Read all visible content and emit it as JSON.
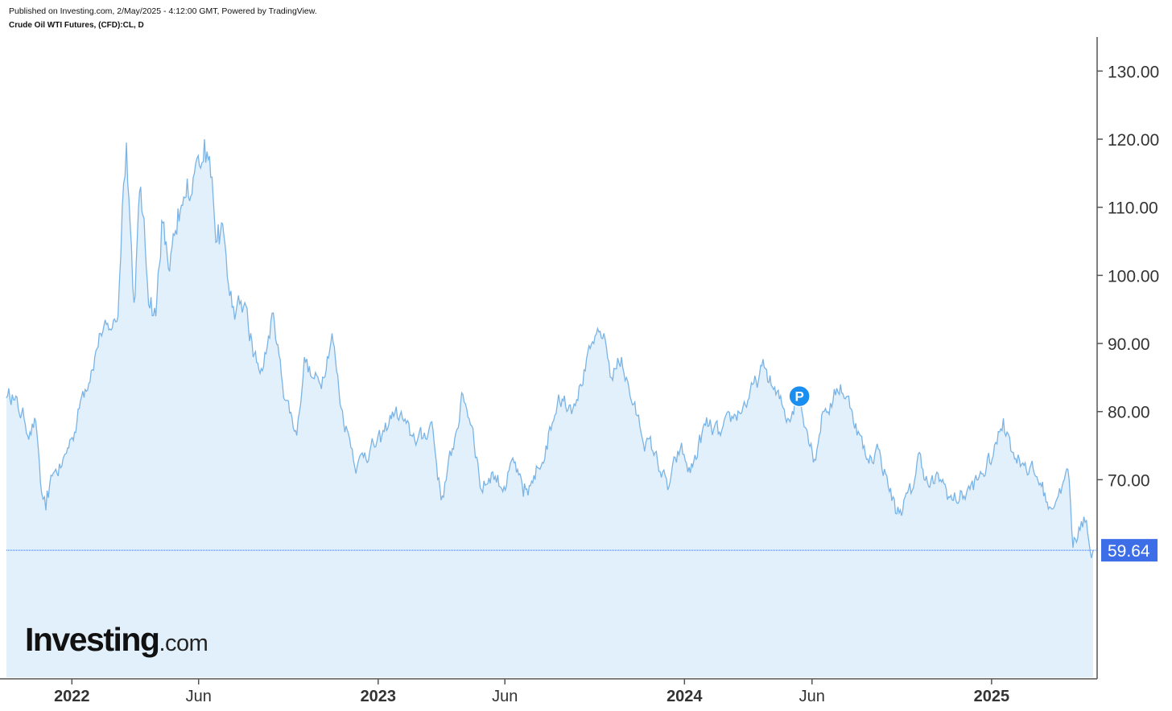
{
  "header": {
    "published": "Published on Investing.com, 2/May/2025 - 4:12:00 GMT, Powered by TradingView.",
    "symbol": "Crude Oil WTI Futures, (CFD):CL, D"
  },
  "logo": {
    "main": "Investing",
    "suffix": ".com"
  },
  "colors": {
    "line": "#7ab4e6",
    "fill": "#e1f0fa",
    "price_label": "#3d6ee8",
    "marker": "#1a8ff0",
    "axis": "#555555"
  },
  "chart_data": {
    "type": "area",
    "title": "Crude Oil WTI Futures, (CFD):CL, D",
    "xlabel": "",
    "ylabel": "",
    "ylim": [
      41,
      135
    ],
    "xlim": [
      "2021-10-15",
      "2025-05-02"
    ],
    "y_ticks": [
      "130.00",
      "120.00",
      "110.00",
      "100.00",
      "90.00",
      "80.00",
      "70.00"
    ],
    "x_ticks": [
      {
        "label": "2022",
        "date": "2022-01-01",
        "bold": true
      },
      {
        "label": "Jun",
        "date": "2022-06-01",
        "bold": false
      },
      {
        "label": "2023",
        "date": "2023-01-01",
        "bold": true
      },
      {
        "label": "Jun",
        "date": "2023-06-01",
        "bold": false
      },
      {
        "label": "2024",
        "date": "2024-01-01",
        "bold": true
      },
      {
        "label": "Jun",
        "date": "2024-06-01",
        "bold": false
      },
      {
        "label": "2025",
        "date": "2025-01-01",
        "bold": true
      }
    ],
    "last_price": 59.64,
    "last_price_label": "59.64",
    "marker": {
      "label": "P",
      "date": "2024-05-17",
      "value": 82.5
    },
    "grid": false,
    "series": [
      {
        "x": [
          "2021-10-15",
          "2021-10-22",
          "2021-10-29",
          "2021-11-05",
          "2021-11-12",
          "2021-11-19",
          "2021-11-26",
          "2021-12-01",
          "2021-12-10",
          "2021-12-20",
          "2021-12-31",
          "2022-01-07",
          "2022-01-14",
          "2022-01-24",
          "2022-02-04",
          "2022-02-14",
          "2022-02-25",
          "2022-03-02",
          "2022-03-07",
          "2022-03-16",
          "2022-03-24",
          "2022-04-01",
          "2022-04-11",
          "2022-04-18",
          "2022-04-26",
          "2022-05-06",
          "2022-05-17",
          "2022-05-27",
          "2022-06-08",
          "2022-06-14",
          "2022-06-23",
          "2022-07-01",
          "2022-07-08",
          "2022-07-14",
          "2022-07-26",
          "2022-08-05",
          "2022-08-16",
          "2022-08-29",
          "2022-09-09",
          "2022-09-26",
          "2022-10-05",
          "2022-10-14",
          "2022-10-24",
          "2022-11-07",
          "2022-11-18",
          "2022-11-28",
          "2022-12-07",
          "2022-12-16",
          "2023-01-04",
          "2023-01-18",
          "2023-01-30",
          "2023-02-08",
          "2023-02-22",
          "2023-03-06",
          "2023-03-17",
          "2023-03-29",
          "2023-04-12",
          "2023-04-24",
          "2023-05-04",
          "2023-05-16",
          "2023-05-31",
          "2023-06-12",
          "2023-06-23",
          "2023-07-07",
          "2023-07-20",
          "2023-08-04",
          "2023-08-18",
          "2023-08-30",
          "2023-09-15",
          "2023-09-27",
          "2023-10-06",
          "2023-10-18",
          "2023-10-31",
          "2023-11-16",
          "2023-11-27",
          "2023-12-12",
          "2023-12-27",
          "2024-01-08",
          "2024-01-26",
          "2024-02-13",
          "2024-02-28",
          "2024-03-18",
          "2024-04-05",
          "2024-04-19",
          "2024-05-03",
          "2024-05-17",
          "2024-06-04",
          "2024-06-14",
          "2024-06-26",
          "2024-07-05",
          "2024-07-19",
          "2024-08-05",
          "2024-08-19",
          "2024-09-10",
          "2024-09-27",
          "2024-10-07",
          "2024-10-18",
          "2024-11-01",
          "2024-11-15",
          "2024-12-02",
          "2024-12-16",
          "2025-01-03",
          "2025-01-15",
          "2025-01-27",
          "2025-02-10",
          "2025-02-28",
          "2025-03-11",
          "2025-03-26",
          "2025-04-02",
          "2025-04-08",
          "2025-04-15",
          "2025-04-24",
          "2025-04-30",
          "2025-05-02"
        ],
        "values": [
          82.0,
          82.5,
          80.5,
          79.0,
          77.0,
          78.5,
          68.0,
          65.5,
          71.0,
          72.0,
          76.0,
          78.5,
          83.0,
          86.0,
          91.5,
          92.0,
          94.0,
          110.0,
          119.5,
          96.0,
          113.0,
          99.0,
          94.0,
          108.0,
          101.0,
          106.0,
          111.5,
          115.0,
          120.0,
          117.5,
          105.0,
          106.0,
          97.0,
          93.5,
          96.0,
          88.0,
          86.0,
          94.5,
          84.0,
          76.5,
          88.0,
          85.0,
          84.0,
          91.5,
          80.5,
          76.0,
          72.0,
          74.0,
          75.5,
          80.0,
          79.0,
          76.5,
          76.0,
          78.5,
          67.0,
          73.5,
          82.5,
          77.5,
          68.5,
          71.0,
          69.0,
          72.5,
          67.5,
          70.0,
          75.0,
          82.5,
          81.0,
          84.0,
          90.0,
          91.5,
          85.0,
          88.0,
          81.0,
          75.5,
          74.0,
          68.5,
          74.5,
          71.0,
          78.0,
          76.5,
          79.0,
          82.0,
          86.5,
          82.5,
          79.0,
          82.5,
          73.0,
          80.0,
          81.5,
          84.0,
          80.0,
          73.0,
          74.5,
          65.0,
          68.0,
          74.0,
          69.0,
          70.0,
          67.0,
          68.0,
          70.0,
          73.5,
          79.0,
          74.0,
          72.5,
          69.5,
          66.0,
          69.0,
          71.5,
          60.0,
          63.0,
          64.0,
          58.5,
          59.64
        ]
      }
    ]
  }
}
